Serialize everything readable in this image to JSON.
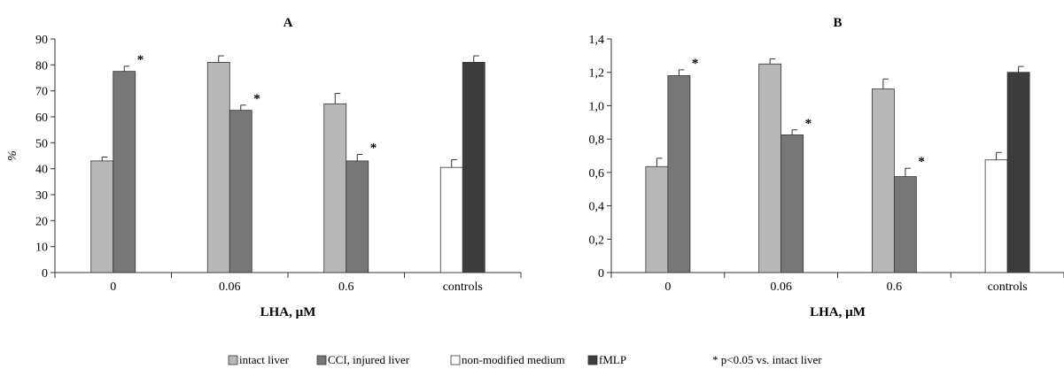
{
  "colors": {
    "intact": "#b8b8b8",
    "cci": "#777777",
    "nonmod": "#ffffff",
    "fmlp": "#3d3d3d",
    "axis": "#333333"
  },
  "legend": {
    "items": [
      "intact liver",
      "CCI, injured liver",
      "non-modified medium",
      "fMLP"
    ],
    "note": "* p<0.05 vs. intact liver"
  },
  "chart_data": [
    {
      "type": "bar",
      "title": "A",
      "ylabel": "%",
      "xlabel": "LHA, µM",
      "ylim": [
        0,
        90
      ],
      "yticks": [
        "0",
        "10",
        "20",
        "30",
        "40",
        "50",
        "60",
        "70",
        "80",
        "90"
      ],
      "categories": [
        "0",
        "0.06",
        "0.6",
        "controls"
      ],
      "series": [
        {
          "name": "intact liver",
          "color_key": "intact",
          "values": [
            43,
            81,
            65,
            null
          ],
          "errors": [
            1.5,
            2.5,
            4,
            null
          ]
        },
        {
          "name": "CCI, injured liver",
          "color_key": "cci",
          "values": [
            77.5,
            62.5,
            43,
            null
          ],
          "errors": [
            2,
            2,
            2.5,
            null
          ]
        },
        {
          "name": "non-modified medium",
          "color_key": "nonmod",
          "values": [
            null,
            null,
            null,
            40.5
          ],
          "errors": [
            null,
            null,
            null,
            3
          ]
        },
        {
          "name": "fMLP",
          "color_key": "fmlp",
          "values": [
            null,
            null,
            null,
            81
          ],
          "errors": [
            null,
            null,
            null,
            2.5
          ]
        }
      ],
      "significant": [
        [
          1,
          0
        ],
        [
          1,
          1
        ],
        [
          1,
          2
        ]
      ],
      "star": "*"
    },
    {
      "type": "bar",
      "title": "B",
      "ylabel": "",
      "xlabel": "LHA, µM",
      "ylim": [
        0,
        1.4
      ],
      "yticks": [
        "0",
        "0,2",
        "0,4",
        "0,6",
        "0,8",
        "1,0",
        "1,2",
        "1,4"
      ],
      "categories": [
        "0",
        "0.06",
        "0.6",
        "controls"
      ],
      "series": [
        {
          "name": "intact liver",
          "color_key": "intact",
          "values": [
            0.635,
            1.25,
            1.1,
            null
          ],
          "errors": [
            0.05,
            0.03,
            0.06,
            null
          ]
        },
        {
          "name": "CCI, injured liver",
          "color_key": "cci",
          "values": [
            1.18,
            0.825,
            0.575,
            null
          ],
          "errors": [
            0.035,
            0.03,
            0.05,
            null
          ]
        },
        {
          "name": "non-modified medium",
          "color_key": "nonmod",
          "values": [
            null,
            null,
            null,
            0.675
          ],
          "errors": [
            null,
            null,
            null,
            0.045
          ]
        },
        {
          "name": "fMLP",
          "color_key": "fmlp",
          "values": [
            null,
            null,
            null,
            1.2
          ],
          "errors": [
            null,
            null,
            null,
            0.035
          ]
        }
      ],
      "significant": [
        [
          1,
          0
        ],
        [
          1,
          1
        ],
        [
          1,
          2
        ]
      ],
      "star": "*"
    }
  ]
}
